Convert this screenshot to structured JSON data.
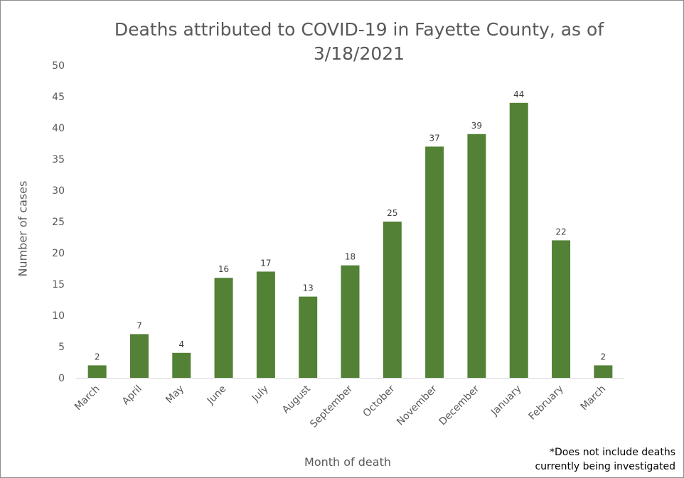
{
  "chart_data": {
    "type": "bar",
    "title_line1": "Deaths attributed to COVID-19 in Fayette County, as of",
    "title_line2": "3/18/2021",
    "xlabel": "Month of death",
    "ylabel": "Number of cases",
    "categories": [
      "March",
      "April",
      "May",
      "June",
      "July",
      "August",
      "September",
      "October",
      "November",
      "December",
      "January",
      "February",
      "March"
    ],
    "values": [
      2,
      7,
      4,
      16,
      17,
      13,
      18,
      25,
      37,
      39,
      44,
      22,
      2
    ],
    "ylim": [
      0,
      50
    ],
    "yticks": [
      0,
      5,
      10,
      15,
      20,
      25,
      30,
      35,
      40,
      45,
      50
    ],
    "grid": false,
    "legend": "none",
    "bar_color": "#538135",
    "text_color": "#595959",
    "footnote_line1": "*Does not include deaths",
    "footnote_line2": "currently being investigated"
  }
}
